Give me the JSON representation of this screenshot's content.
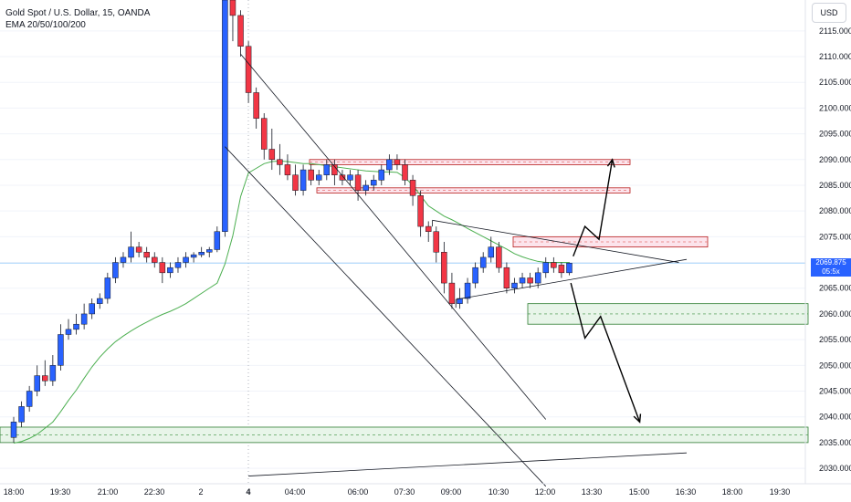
{
  "legend": {
    "title": "Gold Spot / U.S. Dollar, 15, OANDA",
    "indicator": "EMA 20/50/100/200"
  },
  "currency_button": "USD",
  "last_price": {
    "value": "2069.875",
    "countdown": "05:5x"
  },
  "colors": {
    "up": "#2962ff",
    "down": "#f23645",
    "ema": "#4caf50",
    "zone_supply": "#f8bbd0",
    "zone_demand": "#c8e6c9",
    "line": "#131722"
  },
  "chart_data": {
    "type": "candlestick",
    "title": "Gold Spot / U.S. Dollar, 15, OANDA",
    "ylim": [
      2027,
      2121
    ],
    "y_ticks": [
      "2115.000",
      "2110.000",
      "2105.000",
      "2100.000",
      "2095.000",
      "2090.000",
      "2085.000",
      "2080.000",
      "2075.000",
      "2070.000",
      "2065.000",
      "2060.000",
      "2055.000",
      "2050.000",
      "2045.000",
      "2040.000",
      "2035.000",
      "2030.000"
    ],
    "x_ticks": [
      "18:00",
      "19:30",
      "21:00",
      "22:30",
      "2",
      "4",
      "04:00",
      "06:00",
      "07:30",
      "09:00",
      "10:30",
      "12:00",
      "13:30",
      "15:00",
      "16:30",
      "18:00",
      "19:30"
    ],
    "candles": [
      [
        2036,
        2039,
        2035,
        2040
      ],
      [
        2039,
        2042,
        2038,
        2043
      ],
      [
        2042,
        2045,
        2041,
        2046
      ],
      [
        2045,
        2048,
        2044,
        2050
      ],
      [
        2048,
        2047,
        2046,
        2051
      ],
      [
        2047,
        2050,
        2046,
        2052
      ],
      [
        2050,
        2056,
        2049,
        2058
      ],
      [
        2056,
        2057,
        2055,
        2059
      ],
      [
        2057,
        2058,
        2056,
        2060
      ],
      [
        2058,
        2060,
        2057,
        2062
      ],
      [
        2060,
        2062,
        2059,
        2063
      ],
      [
        2062,
        2063,
        2061,
        2064
      ],
      [
        2063,
        2067,
        2062,
        2068
      ],
      [
        2067,
        2070,
        2066,
        2071
      ],
      [
        2070,
        2071,
        2069,
        2072
      ],
      [
        2071,
        2073,
        2070,
        2076
      ],
      [
        2073,
        2072,
        2071,
        2074
      ],
      [
        2072,
        2071,
        2070,
        2073
      ],
      [
        2071,
        2070,
        2069,
        2072
      ],
      [
        2070,
        2068,
        2066,
        2071
      ],
      [
        2068,
        2069,
        2067,
        2070
      ],
      [
        2069,
        2070,
        2068,
        2071
      ],
      [
        2070,
        2071,
        2069,
        2072
      ],
      [
        2071,
        2071.5,
        2070,
        2072
      ],
      [
        2071.5,
        2072,
        2071,
        2073
      ],
      [
        2072,
        2072.5,
        2071,
        2073
      ],
      [
        2072.5,
        2076,
        2072,
        2077
      ],
      [
        2076,
        2121,
        2075,
        2121
      ],
      [
        2121,
        2118,
        2113,
        2121
      ],
      [
        2118,
        2112,
        2110,
        2119
      ],
      [
        2112,
        2103,
        2101,
        2113
      ],
      [
        2103,
        2098,
        2096,
        2104
      ],
      [
        2098,
        2092,
        2090,
        2099
      ],
      [
        2092,
        2090,
        2088,
        2096
      ],
      [
        2090,
        2089,
        2087,
        2093
      ],
      [
        2089,
        2087,
        2086,
        2091
      ],
      [
        2087,
        2084,
        2083,
        2089
      ],
      [
        2084,
        2088,
        2083,
        2089
      ],
      [
        2088,
        2086,
        2085,
        2089
      ],
      [
        2086,
        2087,
        2085,
        2088
      ],
      [
        2087,
        2089,
        2086,
        2090
      ],
      [
        2089,
        2087,
        2085,
        2090
      ],
      [
        2087,
        2086,
        2085,
        2088
      ],
      [
        2086,
        2087,
        2085,
        2088
      ],
      [
        2087,
        2084,
        2082,
        2088
      ],
      [
        2084,
        2085,
        2083,
        2086
      ],
      [
        2085,
        2086,
        2084,
        2087
      ],
      [
        2086,
        2088,
        2085,
        2089
      ],
      [
        2088,
        2090,
        2087,
        2091
      ],
      [
        2090,
        2089,
        2088,
        2091
      ],
      [
        2089,
        2086,
        2085,
        2090
      ],
      [
        2086,
        2083,
        2081,
        2087
      ],
      [
        2083,
        2077,
        2075,
        2084
      ],
      [
        2077,
        2076,
        2074,
        2078
      ],
      [
        2076,
        2072,
        2070,
        2077
      ],
      [
        2072,
        2066,
        2064,
        2074
      ],
      [
        2066,
        2062,
        2061,
        2068
      ],
      [
        2062,
        2063,
        2061,
        2065
      ],
      [
        2063,
        2066,
        2062,
        2067
      ],
      [
        2066,
        2069,
        2065,
        2070
      ],
      [
        2069,
        2071,
        2068,
        2072
      ],
      [
        2071,
        2073,
        2070,
        2075
      ],
      [
        2073,
        2069,
        2068,
        2074
      ],
      [
        2069,
        2065,
        2064,
        2070
      ],
      [
        2065,
        2066,
        2064,
        2067
      ],
      [
        2066,
        2067,
        2065,
        2068
      ],
      [
        2067,
        2066,
        2065,
        2068
      ],
      [
        2066,
        2068,
        2065,
        2069
      ],
      [
        2068,
        2070,
        2067,
        2071
      ],
      [
        2070,
        2069,
        2068,
        2071
      ],
      [
        2069.5,
        2068,
        2067,
        2070
      ],
      [
        2068,
        2069.875,
        2067.5,
        2070
      ]
    ],
    "ema20": [
      2034.9,
      2035.2,
      2035.8,
      2036.6,
      2037.8,
      2039,
      2041,
      2043.2,
      2045.2,
      2047.5,
      2049.7,
      2051.6,
      2053.2,
      2054.6,
      2055.7,
      2056.7,
      2057.6,
      2058.4,
      2059.2,
      2059.9,
      2060.5,
      2061.2,
      2062,
      2063,
      2064,
      2065,
      2066,
      2069.7,
      2075.2,
      2082.8,
      2087.4,
      2088.3,
      2089.2,
      2089.6,
      2089.7,
      2089.6,
      2089.4,
      2089.2,
      2089.2,
      2089,
      2088.8,
      2088.6,
      2088.4,
      2088.2,
      2088,
      2087.8,
      2087.7,
      2087.6,
      2087.6,
      2087.5,
      2086.5,
      2085,
      2083,
      2081,
      2080,
      2079,
      2078.3,
      2077.5,
      2076.6,
      2075.8,
      2075,
      2074.2,
      2073.4,
      2072.6,
      2071.7,
      2071.1,
      2070.6,
      2070.2,
      2070,
      2070,
      2070,
      2070
    ]
  },
  "drawings": {
    "supply_zones": [
      [
        2089.0,
        2090.0
      ],
      [
        2083.5,
        2084.5
      ],
      [
        2073.0,
        2075.0
      ]
    ],
    "demand_zones": [
      [
        2058.0,
        2062.0
      ],
      [
        2035.0,
        2038.0
      ]
    ],
    "upper_channel": [
      [
        29,
        2110.5
      ],
      [
        68,
        2039.5
      ]
    ],
    "lower_channel": [
      [
        27,
        2092.5
      ],
      [
        68,
        2026.5
      ]
    ],
    "triangle_top": [
      [
        53.5,
        2078.2
      ],
      [
        85,
        2070.0
      ]
    ],
    "triangle_bottom": [
      [
        56.5,
        2062.8
      ],
      [
        86,
        2070.6
      ]
    ],
    "bottom_line": [
      [
        30,
        2028.5
      ],
      [
        86,
        2033.0
      ]
    ],
    "arrow_up": [
      [
        71.5,
        2071.2
      ],
      [
        73,
        2077.0
      ],
      [
        74.8,
        2074.5
      ],
      [
        76.5,
        2090.0
      ]
    ],
    "arrow_down": [
      [
        71.2,
        2066.0
      ],
      [
        73,
        2055.3
      ],
      [
        75,
        2059.5
      ],
      [
        80,
        2039.0
      ]
    ]
  }
}
